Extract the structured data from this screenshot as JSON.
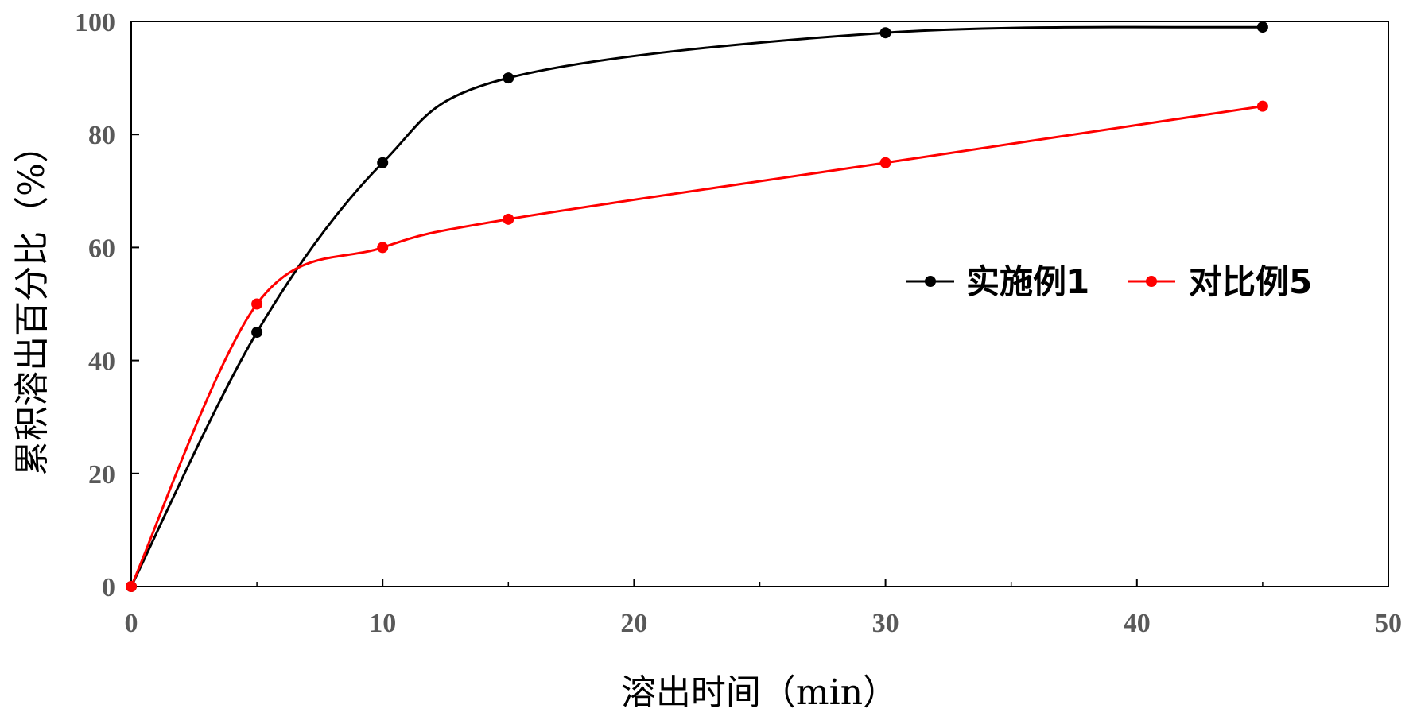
{
  "chart_data": {
    "type": "line",
    "title": "",
    "xlabel": "溶出时间（min）",
    "ylabel": "累积溶出百分比（%）",
    "xlim": [
      0,
      50
    ],
    "ylim": [
      0,
      100
    ],
    "x_ticks": [
      "0",
      "10",
      "20",
      "30",
      "40",
      "50"
    ],
    "y_ticks": [
      "0",
      "20",
      "40",
      "60",
      "80",
      "100"
    ],
    "grid": false,
    "legend_position": "right, middle of plot",
    "series": [
      {
        "name": "实施例1",
        "color": "#000000",
        "x": [
          0,
          5,
          10,
          15,
          30,
          45
        ],
        "y": [
          0,
          45,
          75,
          90,
          98,
          99
        ]
      },
      {
        "name": "对比例5",
        "color": "#ff0000",
        "x": [
          0,
          5,
          10,
          15,
          30,
          45
        ],
        "y": [
          0,
          50,
          60,
          65,
          75,
          85
        ]
      }
    ]
  }
}
